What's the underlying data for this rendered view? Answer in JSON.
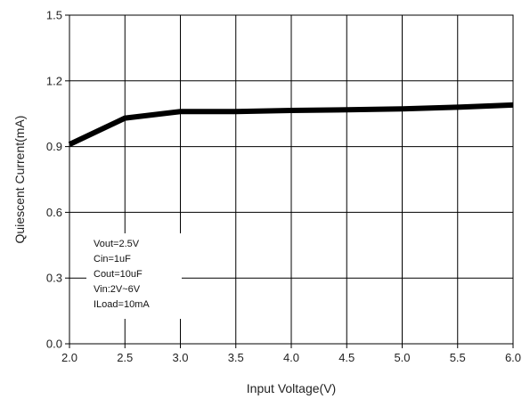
{
  "chart_data": {
    "type": "line",
    "title": "",
    "xlabel": "Input Voltage(V)",
    "ylabel": "Quiescent Current(mA)",
    "xlim": [
      2.0,
      6.0
    ],
    "ylim": [
      0.0,
      1.5
    ],
    "x_ticks": [
      "2.0",
      "2.5",
      "3.0",
      "3.5",
      "4.0",
      "4.5",
      "5.0",
      "5.5",
      "6.0"
    ],
    "y_ticks": [
      "0.0",
      "0.3",
      "0.6",
      "0.9",
      "1.2",
      "1.5"
    ],
    "grid": true,
    "legend": "none",
    "series": [
      {
        "x": [
          2.0,
          2.5,
          3.0,
          3.5,
          4.0,
          4.5,
          5.0,
          5.5,
          6.0
        ],
        "y": [
          0.91,
          1.03,
          1.06,
          1.06,
          1.065,
          1.068,
          1.072,
          1.08,
          1.09
        ],
        "color": "#000000"
      }
    ],
    "annotations": [
      "Vout=2.5V",
      "Cin=1uF",
      "Cout=10uF",
      "Vin:2V~6V",
      "ILoad=10mA"
    ]
  }
}
